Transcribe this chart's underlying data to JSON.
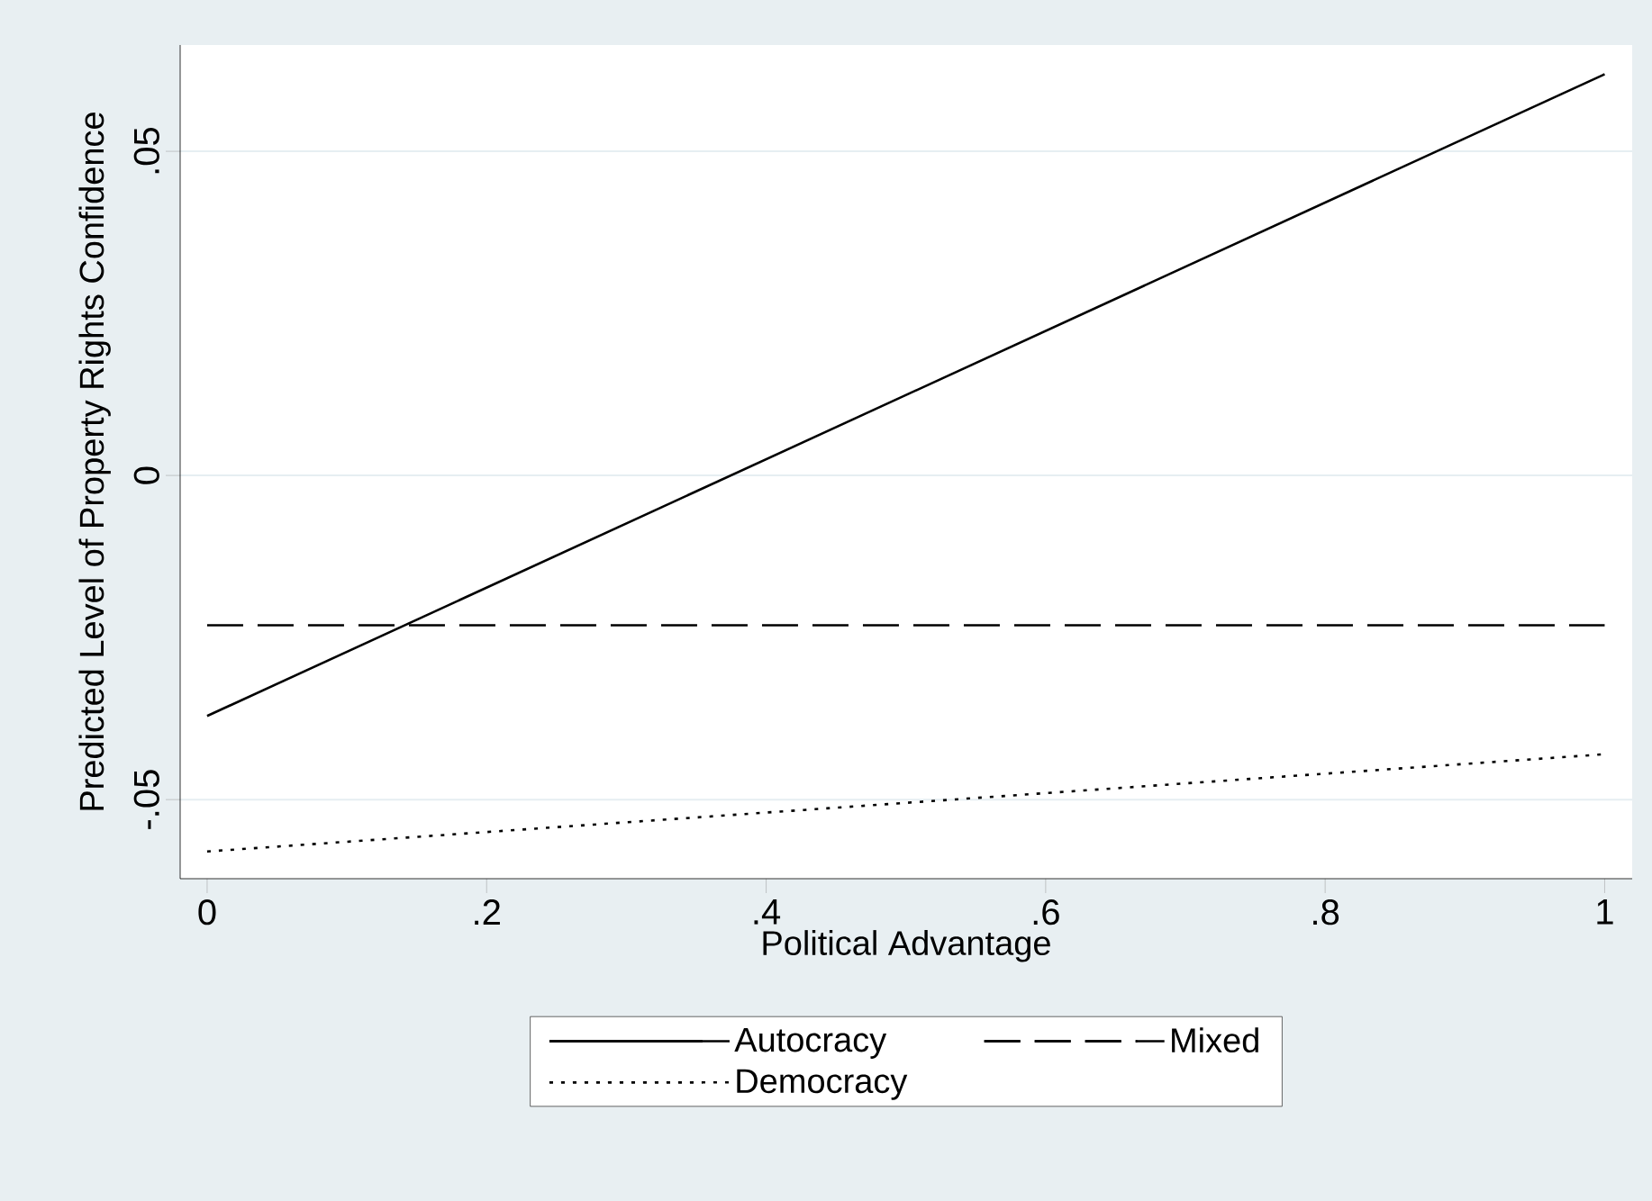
{
  "chart_data": {
    "type": "line",
    "xlabel": "Political Advantage",
    "ylabel": "Predicted Level of Property Rights Confidence",
    "x": [
      0,
      1
    ],
    "series": [
      {
        "name": "Autocracy",
        "color": "#000000",
        "line_style": "solid",
        "values": [
          -0.0371,
          0.0619
        ]
      },
      {
        "name": "Mixed",
        "color": "#000000",
        "line_style": "dashed",
        "values": [
          -0.0231,
          -0.0231
        ]
      },
      {
        "name": "Democracy",
        "color": "#000000",
        "line_style": "dotted",
        "values": [
          -0.058,
          -0.043
        ]
      }
    ],
    "xlim": [
      -0.0193,
      1.0197
    ],
    "ylim": [
      -0.0622,
      0.0664
    ],
    "xticks": [
      0,
      {
        "value": 0.2,
        "label": ".2"
      },
      {
        "value": 0.4,
        "label": ".4"
      },
      {
        "value": 0.6,
        "label": ".6"
      },
      {
        "value": 0.8,
        "label": ".8"
      },
      1
    ],
    "yticks": [
      {
        "value": -0.05,
        "label": "-.05"
      },
      0,
      {
        "value": 0.05,
        "label": ".05"
      }
    ],
    "grid": "y",
    "legend": "bottom",
    "marker": "none"
  }
}
